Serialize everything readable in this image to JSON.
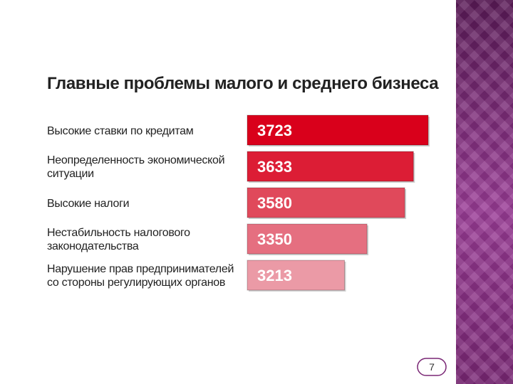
{
  "slide": {
    "page_number": "7",
    "side_panel_color": "#8a2d86"
  },
  "chart_data": {
    "type": "bar",
    "orientation": "horizontal",
    "title": "Главные проблемы малого и среднего бизнеса",
    "categories": [
      "Высокие ставки по кредитам",
      "Неопределенность экономической ситуации",
      "Высокие налоги",
      "Нестабильность налогового законодательства",
      "Нарушение прав предпринимателей со стороны регулирующих органов"
    ],
    "values": [
      3723,
      3633,
      3580,
      3350,
      3213
    ],
    "value_labels": [
      "3723",
      "3633",
      "3580",
      "3350",
      "3213"
    ],
    "bar_colors": [
      "#d9001b",
      "#dc1d35",
      "#e0495b",
      "#e56f80",
      "#eb9aa6"
    ],
    "xlim": [
      0,
      3723
    ],
    "grid": false,
    "legend": "none"
  }
}
